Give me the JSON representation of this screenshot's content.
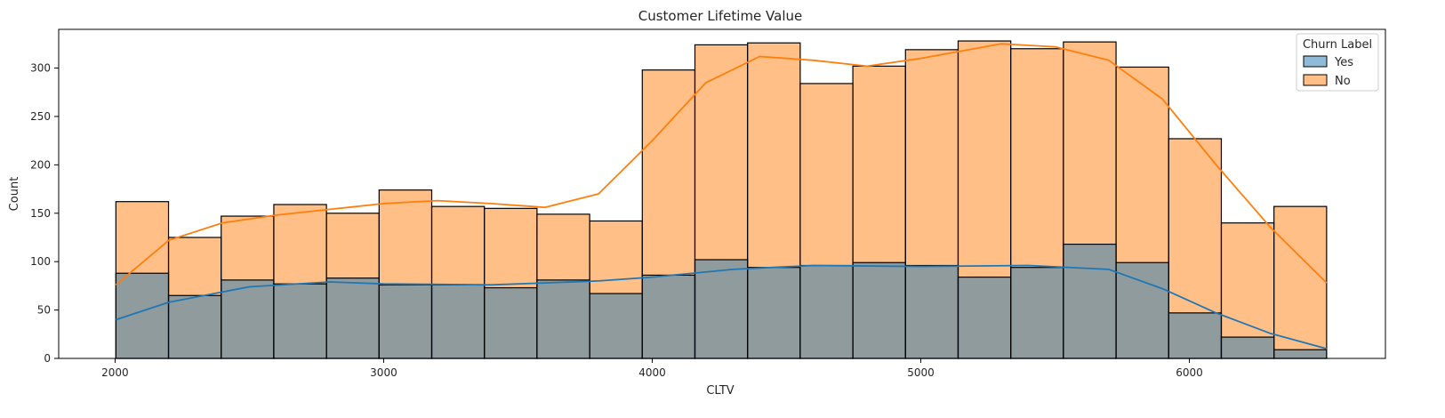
{
  "chart_data": {
    "type": "histogram",
    "title": "Customer Lifetime Value",
    "xlabel": "CLTV",
    "ylabel": "Count",
    "xlim": [
      1790,
      6730
    ],
    "ylim": [
      0,
      340
    ],
    "xticks": [
      2000,
      3000,
      4000,
      5000,
      6000
    ],
    "yticks": [
      0,
      50,
      100,
      150,
      200,
      250,
      300
    ],
    "bin_edges": [
      2003,
      2199,
      2395,
      2591,
      2787,
      2983,
      3179,
      3375,
      3571,
      3767,
      3963,
      4159,
      4355,
      4551,
      4747,
      4943,
      5139,
      5335,
      5531,
      5727,
      5923,
      6119,
      6315,
      6511
    ],
    "legend": {
      "title": "Churn Label",
      "position": "top-right"
    },
    "series": [
      {
        "name": "Yes",
        "color": "#1f77b4",
        "fill": "#8fa9c2",
        "counts": [
          88,
          65,
          81,
          77,
          83,
          76,
          76,
          73,
          81,
          67,
          86,
          102,
          94,
          96,
          99,
          96,
          84,
          94,
          118,
          99,
          47,
          22,
          9
        ],
        "kde": [
          [
            2003,
            40
          ],
          [
            2200,
            58
          ],
          [
            2500,
            74
          ],
          [
            2800,
            79
          ],
          [
            3000,
            77
          ],
          [
            3400,
            76
          ],
          [
            3800,
            80
          ],
          [
            4000,
            84
          ],
          [
            4300,
            92
          ],
          [
            4600,
            96
          ],
          [
            5000,
            95
          ],
          [
            5400,
            96
          ],
          [
            5700,
            92
          ],
          [
            5900,
            72
          ],
          [
            6100,
            47
          ],
          [
            6300,
            26
          ],
          [
            6511,
            10
          ]
        ]
      },
      {
        "name": "No",
        "color": "#ff7f0e",
        "fill": "#ffbc83",
        "counts": [
          162,
          125,
          147,
          159,
          150,
          174,
          157,
          155,
          149,
          142,
          298,
          324,
          326,
          284,
          302,
          319,
          328,
          320,
          327,
          301,
          227,
          140,
          157
        ],
        "kde": [
          [
            2003,
            76
          ],
          [
            2200,
            122
          ],
          [
            2400,
            140
          ],
          [
            2600,
            148
          ],
          [
            2800,
            154
          ],
          [
            3000,
            160
          ],
          [
            3200,
            163
          ],
          [
            3400,
            160
          ],
          [
            3600,
            156
          ],
          [
            3800,
            170
          ],
          [
            4000,
            225
          ],
          [
            4200,
            285
          ],
          [
            4400,
            312
          ],
          [
            4600,
            308
          ],
          [
            4800,
            302
          ],
          [
            5000,
            310
          ],
          [
            5300,
            325
          ],
          [
            5500,
            322
          ],
          [
            5700,
            308
          ],
          [
            5900,
            268
          ],
          [
            6100,
            200
          ],
          [
            6300,
            136
          ],
          [
            6511,
            78
          ]
        ]
      }
    ]
  }
}
